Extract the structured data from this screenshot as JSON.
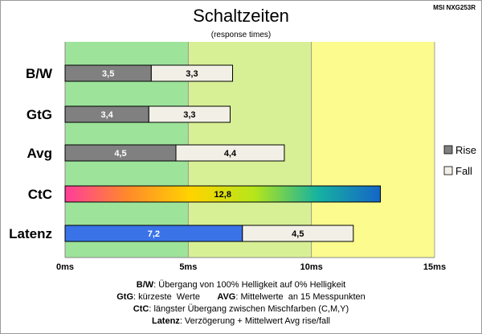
{
  "chart_data": {
    "type": "bar",
    "orientation": "horizontal",
    "stacked": true,
    "title": "Schaltzeiten",
    "subtitle": "(response times)",
    "model": "MSI NXG253R",
    "categories": [
      "B/W",
      "GtG",
      "Avg",
      "CtC",
      "Latenz"
    ],
    "segments": [
      [
        {
          "value": 3.5,
          "label": "3,5",
          "style": "rise"
        },
        {
          "value": 3.3,
          "label": "3,3",
          "style": "fall"
        }
      ],
      [
        {
          "value": 3.4,
          "label": "3,4",
          "style": "rise"
        },
        {
          "value": 3.3,
          "label": "3,3",
          "style": "fall"
        }
      ],
      [
        {
          "value": 4.5,
          "label": "4,5",
          "style": "rise"
        },
        {
          "value": 4.4,
          "label": "4,4",
          "style": "fall"
        }
      ],
      [
        {
          "value": 12.8,
          "label": "12,8",
          "style": "ctc"
        }
      ],
      [
        {
          "value": 7.2,
          "label": "7,2",
          "style": "latency"
        },
        {
          "value": 4.5,
          "label": "4,5",
          "style": "fall"
        }
      ]
    ],
    "series": [
      {
        "name": "Rise",
        "color": "#808080"
      },
      {
        "name": "Fall",
        "color": "#f2f0e6"
      }
    ],
    "x_ticks": [
      "0ms",
      "5ms",
      "10ms",
      "15ms"
    ],
    "xlim": [
      0,
      15
    ],
    "background_zones": [
      {
        "from": 0,
        "to": 5,
        "color": "#9de39a"
      },
      {
        "from": 5,
        "to": 10,
        "color": "#d8f095"
      },
      {
        "from": 10,
        "to": 15,
        "color": "#fbfb8e"
      }
    ],
    "colors": {
      "rise": "#808080",
      "fall": "#f2f0e6",
      "latency": "#3a73e8",
      "ctc_gradient": [
        "#ff3d9a",
        "#ff8a2a",
        "#ffd400",
        "#b6e61a",
        "#16b2a0",
        "#1565c8"
      ]
    },
    "grid": true,
    "legend_position": "right"
  },
  "notes": [
    {
      "bold": "B/W",
      "text": ":  Übergang von 100% Helligkeit auf 0% Helligkeit"
    },
    {
      "bold": "GtG",
      "text": ": kürzeste  Werte       ",
      "bold2": "AVG",
      "text2": ": Mittelwerte  an 15 Messpunkten"
    },
    {
      "bold": "CtC",
      "text": ": längster Übergang  zwischen Mischfarben  (C,M,Y)"
    },
    {
      "bold": "Latenz",
      "text": ": Verzögerung  + Mittelwert  Avg rise/fall"
    }
  ]
}
